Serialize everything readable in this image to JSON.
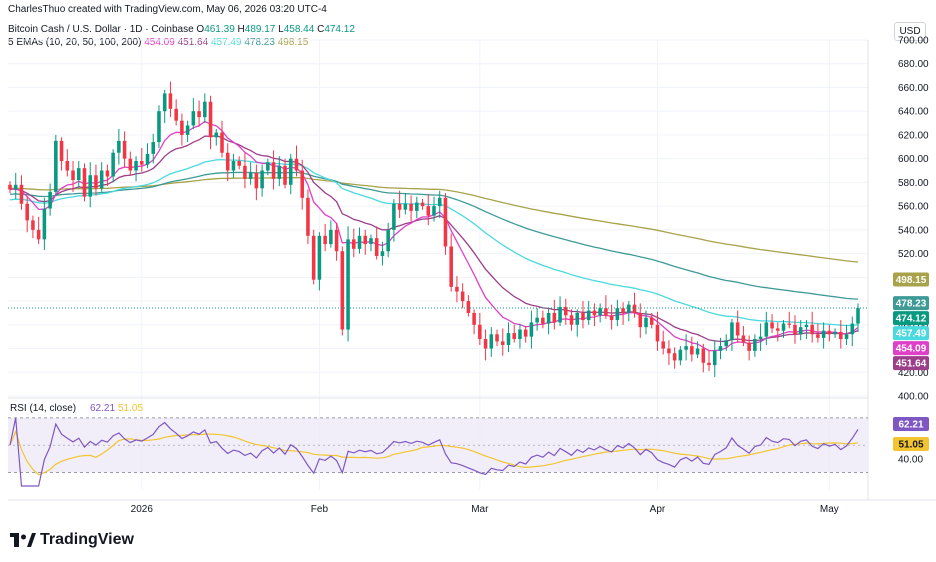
{
  "header": {
    "attribution": "CharlesThuo created with TradingView.com, May 06, 2026 03:20 UTC-4",
    "symbol": "Bitcoin Cash / U.S. Dollar · 1D · Coinbase",
    "ohlc": [
      {
        "label": "O",
        "value": "461.39"
      },
      {
        "label": "H",
        "value": "489.17"
      },
      {
        "label": "L",
        "value": "458.44"
      },
      {
        "label": "C",
        "value": "474.12"
      }
    ],
    "ema_label": "5 EMAs (10, 20, 50, 100, 200)",
    "ema_values": [
      "454.09",
      "451.64",
      "457.49",
      "478.23",
      "498.15"
    ],
    "currency": "USD"
  },
  "colors": {
    "up": "#089981",
    "down": "#f23645",
    "ema10": "#e040c8",
    "ema20": "#9c3f8a",
    "ema50": "#4ad9de",
    "ema100": "#3d9a96",
    "ema200": "#a8a24a",
    "rsi": "#7e57c2",
    "rsi_ma": "#f2c530"
  },
  "price_scale": [
    "700.00",
    "680.00",
    "660.00",
    "640.00",
    "620.00",
    "600.00",
    "580.00",
    "560.00",
    "540.00",
    "520.00",
    "500.00",
    "480.00",
    "460.00",
    "440.00",
    "420.00",
    "400.00"
  ],
  "price_tags": [
    {
      "value": "498.15",
      "color": "#a8a24a"
    },
    {
      "value": "478.23",
      "color": "#3d9a96"
    },
    {
      "value": "474.12",
      "color": "#089981"
    },
    {
      "value": "457.49",
      "color": "#4ad9de"
    },
    {
      "value": "454.09",
      "color": "#e040c8"
    },
    {
      "value": "451.64",
      "color": "#9c3f8a"
    }
  ],
  "time_axis": [
    "2026",
    "Feb",
    "Mar",
    "Apr",
    "May"
  ],
  "rsi_panel": {
    "label": "RSI (14, close)",
    "values": [
      "62.21",
      "51.05"
    ],
    "scale_label": "40.00",
    "upper": 70,
    "lower": 30
  },
  "brand": "TradingView",
  "chart_data": {
    "type": "candlestick",
    "title": "Bitcoin Cash / U.S. Dollar · 1D · Coinbase",
    "x_range": [
      "2025-12-09",
      "2026-05-06"
    ],
    "ylim": [
      400,
      700
    ],
    "grid": true,
    "last_close": 474.12,
    "close": [
      {
        "date": "2025-12-09",
        "close": 574
      },
      {
        "date": "2025-12-10",
        "close": 578
      },
      {
        "date": "2025-12-11",
        "close": 562
      },
      {
        "date": "2025-12-12",
        "close": 548
      },
      {
        "date": "2025-12-13",
        "close": 540
      },
      {
        "date": "2025-12-14",
        "close": 532
      },
      {
        "date": "2025-12-15",
        "close": 558
      },
      {
        "date": "2025-12-16",
        "close": 572
      },
      {
        "date": "2025-12-17",
        "close": 615
      },
      {
        "date": "2025-12-18",
        "close": 598
      },
      {
        "date": "2025-12-19",
        "close": 590
      },
      {
        "date": "2025-12-20",
        "close": 582
      },
      {
        "date": "2025-12-21",
        "close": 592
      },
      {
        "date": "2025-12-22",
        "close": 568
      },
      {
        "date": "2025-12-23",
        "close": 586
      },
      {
        "date": "2025-12-24",
        "close": 575
      },
      {
        "date": "2025-12-25",
        "close": 590
      },
      {
        "date": "2025-12-26",
        "close": 585
      },
      {
        "date": "2025-12-27",
        "close": 605
      },
      {
        "date": "2025-12-28",
        "close": 615
      },
      {
        "date": "2025-12-29",
        "close": 600
      },
      {
        "date": "2025-12-30",
        "close": 590
      },
      {
        "date": "2025-12-31",
        "close": 598
      },
      {
        "date": "2026-01-01",
        "close": 595
      },
      {
        "date": "2026-01-02",
        "close": 604
      },
      {
        "date": "2026-01-03",
        "close": 614
      },
      {
        "date": "2026-01-04",
        "close": 640
      },
      {
        "date": "2026-01-05",
        "close": 655
      },
      {
        "date": "2026-01-06",
        "close": 642
      },
      {
        "date": "2026-01-07",
        "close": 632
      },
      {
        "date": "2026-01-08",
        "close": 620
      },
      {
        "date": "2026-01-09",
        "close": 628
      },
      {
        "date": "2026-01-10",
        "close": 640
      },
      {
        "date": "2026-01-11",
        "close": 635
      },
      {
        "date": "2026-01-12",
        "close": 648
      },
      {
        "date": "2026-01-13",
        "close": 618
      },
      {
        "date": "2026-01-14",
        "close": 622
      },
      {
        "date": "2026-01-15",
        "close": 605
      },
      {
        "date": "2026-01-16",
        "close": 590
      },
      {
        "date": "2026-01-17",
        "close": 598
      },
      {
        "date": "2026-01-18",
        "close": 594
      },
      {
        "date": "2026-01-19",
        "close": 583
      },
      {
        "date": "2026-01-20",
        "close": 588
      },
      {
        "date": "2026-01-21",
        "close": 575
      },
      {
        "date": "2026-01-22",
        "close": 590
      },
      {
        "date": "2026-01-23",
        "close": 597
      },
      {
        "date": "2026-01-24",
        "close": 583
      },
      {
        "date": "2026-01-25",
        "close": 594
      },
      {
        "date": "2026-01-26",
        "close": 578
      },
      {
        "date": "2026-01-27",
        "close": 600
      },
      {
        "date": "2026-01-28",
        "close": 590
      },
      {
        "date": "2026-01-29",
        "close": 567
      },
      {
        "date": "2026-01-30",
        "close": 535
      },
      {
        "date": "2026-01-31",
        "close": 498
      },
      {
        "date": "2026-02-01",
        "close": 535
      },
      {
        "date": "2026-02-02",
        "close": 528
      },
      {
        "date": "2026-02-03",
        "close": 540
      },
      {
        "date": "2026-02-04",
        "close": 522
      },
      {
        "date": "2026-02-05",
        "close": 456
      },
      {
        "date": "2026-02-06",
        "close": 532
      },
      {
        "date": "2026-02-07",
        "close": 524
      },
      {
        "date": "2026-02-08",
        "close": 535
      },
      {
        "date": "2026-02-09",
        "close": 528
      },
      {
        "date": "2026-02-10",
        "close": 533
      },
      {
        "date": "2026-02-11",
        "close": 518
      },
      {
        "date": "2026-02-12",
        "close": 522
      },
      {
        "date": "2026-02-13",
        "close": 540
      },
      {
        "date": "2026-02-14",
        "close": 562
      },
      {
        "date": "2026-02-15",
        "close": 557
      },
      {
        "date": "2026-02-16",
        "close": 562
      },
      {
        "date": "2026-02-17",
        "close": 556
      },
      {
        "date": "2026-02-18",
        "close": 563
      },
      {
        "date": "2026-02-19",
        "close": 560
      },
      {
        "date": "2026-02-20",
        "close": 552
      },
      {
        "date": "2026-02-21",
        "close": 560
      },
      {
        "date": "2026-02-22",
        "close": 567
      },
      {
        "date": "2026-02-23",
        "close": 526
      },
      {
        "date": "2026-02-24",
        "close": 492
      },
      {
        "date": "2026-02-25",
        "close": 488
      },
      {
        "date": "2026-02-26",
        "close": 480
      },
      {
        "date": "2026-02-27",
        "close": 470
      },
      {
        "date": "2026-02-28",
        "close": 460
      },
      {
        "date": "2026-03-01",
        "close": 448
      },
      {
        "date": "2026-03-02",
        "close": 440
      },
      {
        "date": "2026-03-03",
        "close": 452
      },
      {
        "date": "2026-03-04",
        "close": 446
      },
      {
        "date": "2026-03-05",
        "close": 443
      },
      {
        "date": "2026-03-06",
        "close": 453
      },
      {
        "date": "2026-03-07",
        "close": 448
      },
      {
        "date": "2026-03-08",
        "close": 456
      },
      {
        "date": "2026-03-09",
        "close": 450
      },
      {
        "date": "2026-03-10",
        "close": 462
      },
      {
        "date": "2026-03-11",
        "close": 466
      },
      {
        "date": "2026-03-12",
        "close": 461
      },
      {
        "date": "2026-03-13",
        "close": 470
      },
      {
        "date": "2026-03-14",
        "close": 462
      },
      {
        "date": "2026-03-15",
        "close": 475
      },
      {
        "date": "2026-03-16",
        "close": 468
      },
      {
        "date": "2026-03-17",
        "close": 460
      },
      {
        "date": "2026-03-18",
        "close": 470
      },
      {
        "date": "2026-03-19",
        "close": 464
      },
      {
        "date": "2026-03-20",
        "close": 472
      },
      {
        "date": "2026-03-21",
        "close": 468
      },
      {
        "date": "2026-03-22",
        "close": 474
      },
      {
        "date": "2026-03-23",
        "close": 468
      },
      {
        "date": "2026-03-24",
        "close": 464
      },
      {
        "date": "2026-03-25",
        "close": 474
      },
      {
        "date": "2026-03-26",
        "close": 470
      },
      {
        "date": "2026-03-27",
        "close": 477
      },
      {
        "date": "2026-03-28",
        "close": 470
      },
      {
        "date": "2026-03-29",
        "close": 458
      },
      {
        "date": "2026-03-30",
        "close": 466
      },
      {
        "date": "2026-03-31",
        "close": 460
      },
      {
        "date": "2026-04-01",
        "close": 446
      },
      {
        "date": "2026-04-02",
        "close": 440
      },
      {
        "date": "2026-04-03",
        "close": 436
      },
      {
        "date": "2026-04-04",
        "close": 430
      },
      {
        "date": "2026-04-05",
        "close": 439
      },
      {
        "date": "2026-04-06",
        "close": 442
      },
      {
        "date": "2026-04-07",
        "close": 435
      },
      {
        "date": "2026-04-08",
        "close": 440
      },
      {
        "date": "2026-04-09",
        "close": 428
      },
      {
        "date": "2026-04-10",
        "close": 426
      },
      {
        "date": "2026-04-11",
        "close": 438
      },
      {
        "date": "2026-04-12",
        "close": 442
      },
      {
        "date": "2026-04-13",
        "close": 447
      },
      {
        "date": "2026-04-14",
        "close": 462
      },
      {
        "date": "2026-04-15",
        "close": 451
      },
      {
        "date": "2026-04-16",
        "close": 445
      },
      {
        "date": "2026-04-17",
        "close": 438
      },
      {
        "date": "2026-04-18",
        "close": 448
      },
      {
        "date": "2026-04-19",
        "close": 450
      },
      {
        "date": "2026-04-20",
        "close": 462
      },
      {
        "date": "2026-04-21",
        "close": 457
      },
      {
        "date": "2026-04-22",
        "close": 455
      },
      {
        "date": "2026-04-23",
        "close": 461
      },
      {
        "date": "2026-04-24",
        "close": 460
      },
      {
        "date": "2026-04-25",
        "close": 452
      },
      {
        "date": "2026-04-26",
        "close": 458
      },
      {
        "date": "2026-04-27",
        "close": 460
      },
      {
        "date": "2026-04-28",
        "close": 452
      },
      {
        "date": "2026-04-29",
        "close": 449
      },
      {
        "date": "2026-04-30",
        "close": 455
      },
      {
        "date": "2026-05-01",
        "close": 452
      },
      {
        "date": "2026-05-02",
        "close": 454
      },
      {
        "date": "2026-05-03",
        "close": 448
      },
      {
        "date": "2026-05-04",
        "close": 452
      },
      {
        "date": "2026-05-05",
        "close": 461
      },
      {
        "date": "2026-05-06",
        "close": 474
      }
    ]
  }
}
